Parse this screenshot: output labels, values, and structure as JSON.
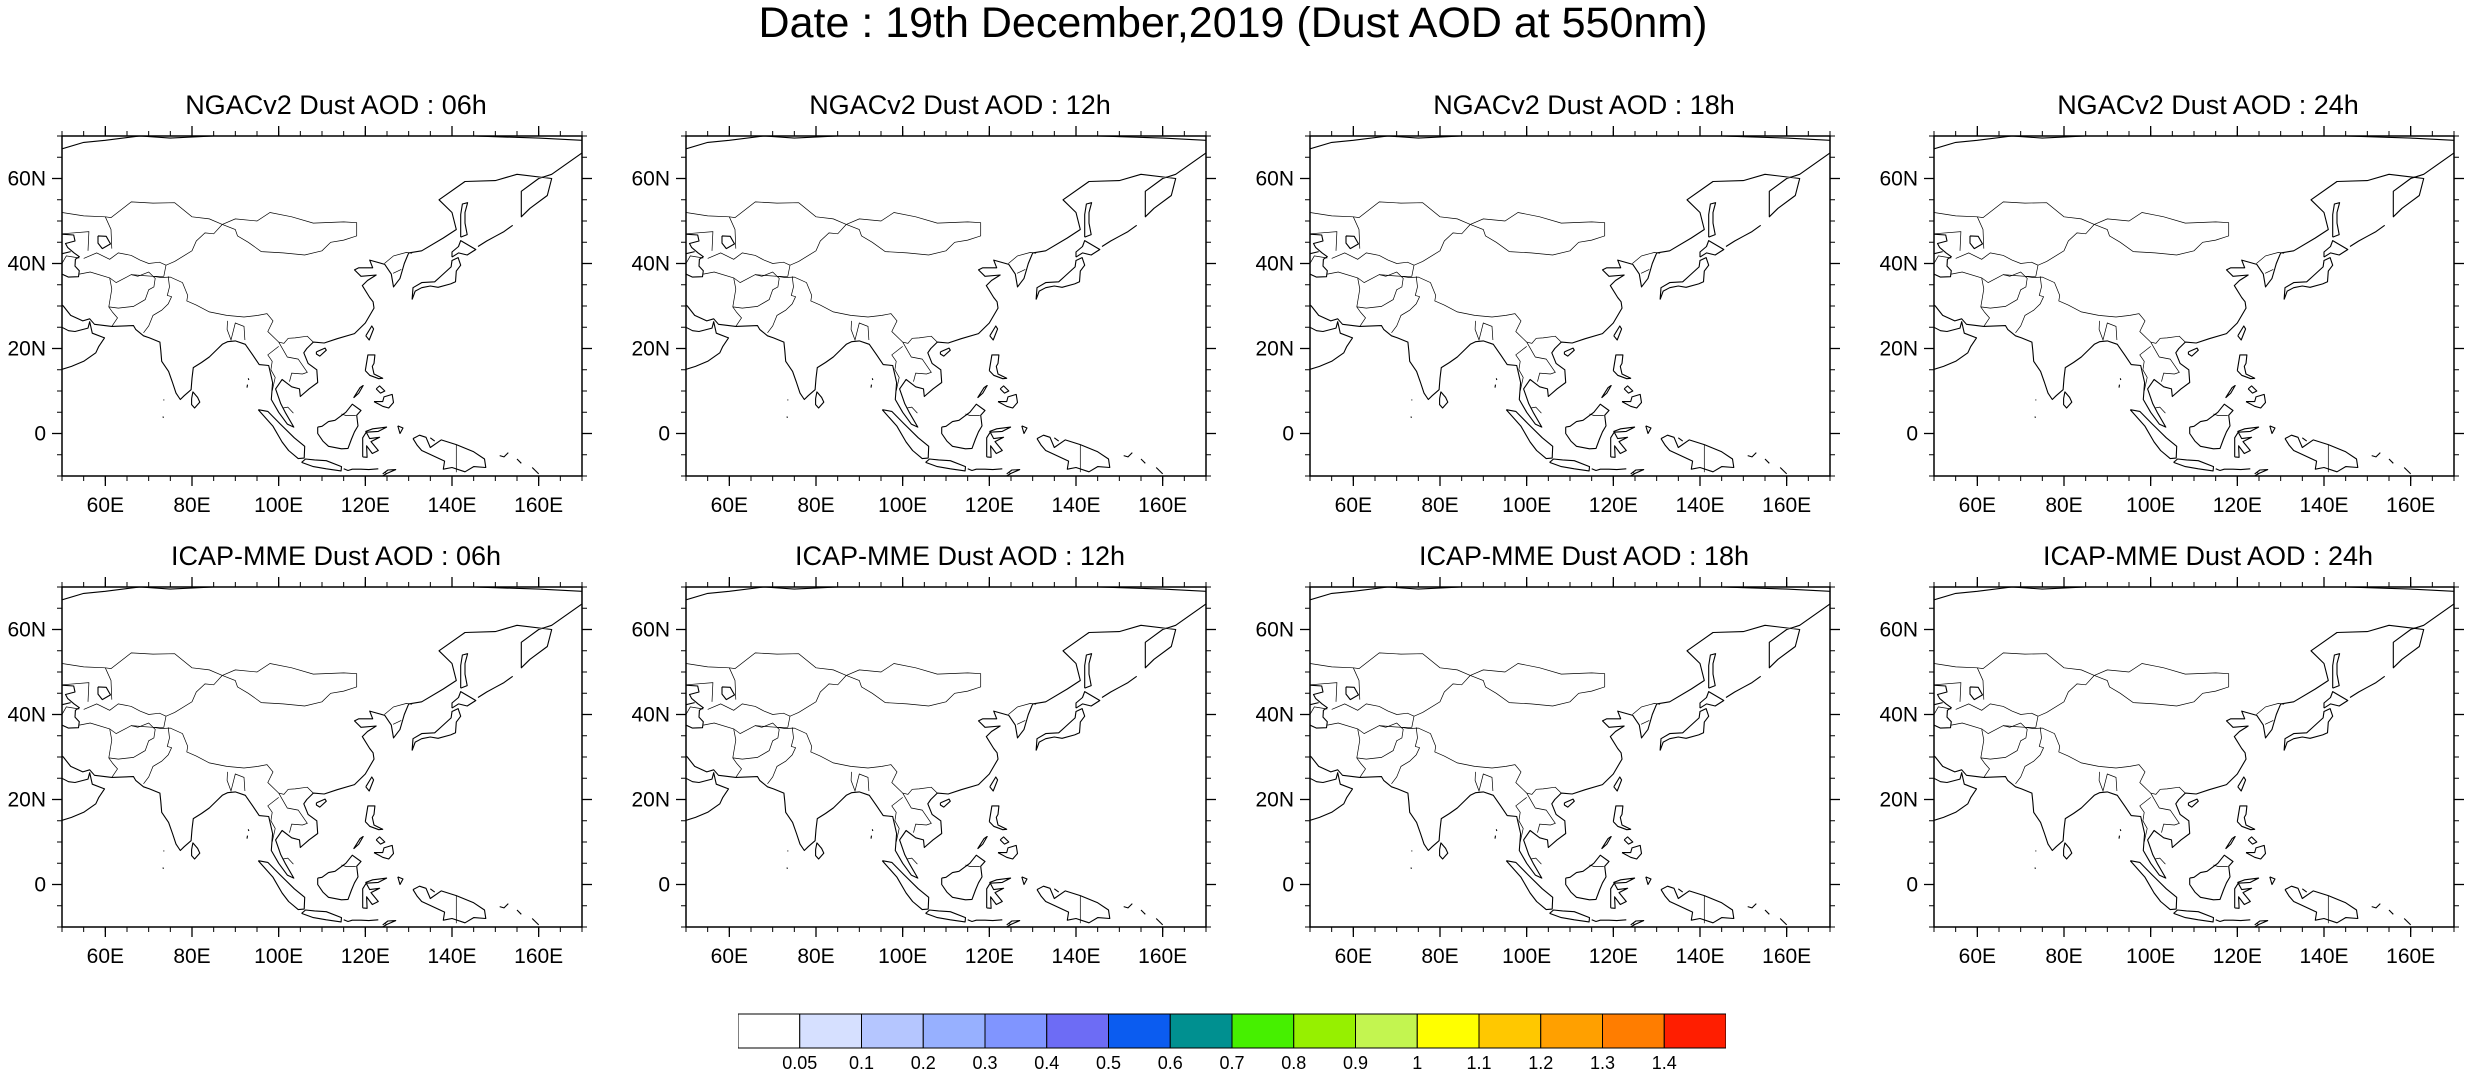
{
  "title": "Date : 19th December,2019 (Dust AOD at 550nm)",
  "panels": [
    {
      "title": "NGACv2 Dust AOD : 06h",
      "model": "NGACv2",
      "hour": "06h"
    },
    {
      "title": "NGACv2 Dust AOD : 12h",
      "model": "NGACv2",
      "hour": "12h"
    },
    {
      "title": "NGACv2 Dust AOD : 18h",
      "model": "NGACv2",
      "hour": "18h"
    },
    {
      "title": "NGACv2 Dust AOD : 24h",
      "model": "NGACv2",
      "hour": "24h"
    },
    {
      "title": "ICAP-MME Dust AOD : 06h",
      "model": "ICAP-MME",
      "hour": "06h"
    },
    {
      "title": "ICAP-MME Dust AOD : 12h",
      "model": "ICAP-MME",
      "hour": "12h"
    },
    {
      "title": "ICAP-MME Dust AOD : 18h",
      "model": "ICAP-MME",
      "hour": "18h"
    },
    {
      "title": "ICAP-MME Dust AOD : 24h",
      "model": "ICAP-MME",
      "hour": "24h"
    }
  ],
  "axes": {
    "lon_range": [
      50,
      170
    ],
    "lat_range": [
      -10,
      70
    ],
    "lon_ticks": [
      60,
      80,
      100,
      120,
      140,
      160
    ],
    "lon_labels": [
      "60E",
      "80E",
      "100E",
      "120E",
      "140E",
      "160E"
    ],
    "lat_ticks": [
      60,
      40,
      20,
      0
    ],
    "lat_labels": [
      "60N",
      "40N",
      "20N",
      "0"
    ]
  },
  "colorbar": {
    "levels": [
      "0.05",
      "0.1",
      "0.2",
      "0.3",
      "0.4",
      "0.5",
      "0.6",
      "0.7",
      "0.8",
      "0.9",
      "1",
      "1.1",
      "1.2",
      "1.3",
      "1.4"
    ],
    "colors": [
      "#ffffff",
      "#d6e0ff",
      "#b5c6ff",
      "#97b0ff",
      "#8095ff",
      "#6d6cf5",
      "#0b5cf0",
      "#009090",
      "#46f000",
      "#96f000",
      "#c3f550",
      "#ffff00",
      "#ffc800",
      "#ffa000",
      "#ff7d00",
      "#ff1e00"
    ]
  }
}
